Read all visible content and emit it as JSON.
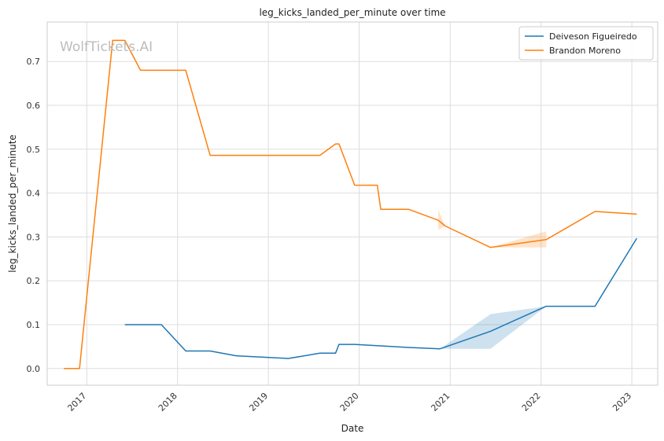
{
  "chart_data": {
    "type": "line",
    "title": "leg_kicks_landed_per_minute over time",
    "xlabel": "Date",
    "ylabel": "leg_kicks_landed_per_minute",
    "watermark": "WolfTickets.AI",
    "x_ticks": [
      "2017",
      "2018",
      "2019",
      "2020",
      "2021",
      "2022",
      "2023"
    ],
    "y_ticks": [
      "0.0",
      "0.1",
      "0.2",
      "0.3",
      "0.4",
      "0.5",
      "0.6",
      "0.7"
    ],
    "xlim": [
      "2016-07-26",
      "2023-04-15"
    ],
    "ylim": [
      -0.038,
      0.79
    ],
    "grid": true,
    "legend_position": "top-right",
    "series": [
      {
        "name": "Deiveson Figueiredo",
        "color": "#1f77b4",
        "points": [
          [
            "2017-06-03",
            0.1
          ],
          [
            "2017-10-28",
            0.1
          ],
          [
            "2018-02-03",
            0.04
          ],
          [
            "2018-05-12",
            0.04
          ],
          [
            "2018-08-25",
            0.029
          ],
          [
            "2019-03-23",
            0.023
          ],
          [
            "2019-07-27",
            0.035
          ],
          [
            "2019-09-28",
            0.035
          ],
          [
            "2019-10-12",
            0.055
          ],
          [
            "2019-12-14",
            0.055
          ],
          [
            "2020-03-14",
            0.052
          ],
          [
            "2020-07-18",
            0.048
          ],
          [
            "2020-11-21",
            0.045
          ],
          [
            "2021-06-12",
            0.085
          ],
          [
            "2022-01-22",
            0.142
          ],
          [
            "2022-08-06",
            0.142
          ],
          [
            "2023-01-21",
            0.297
          ]
        ],
        "band": [
          [
            "2020-11-21",
            0.045,
            0.045
          ],
          [
            "2021-06-12",
            0.045,
            0.124
          ],
          [
            "2022-01-22",
            0.142,
            0.142
          ]
        ]
      },
      {
        "name": "Brandon Moreno",
        "color": "#ff7f0e",
        "points": [
          [
            "2016-10-01",
            0.0
          ],
          [
            "2016-12-03",
            0.0
          ],
          [
            "2017-04-15",
            0.748
          ],
          [
            "2017-06-03",
            0.748
          ],
          [
            "2017-08-05",
            0.68
          ],
          [
            "2018-02-03",
            0.68
          ],
          [
            "2018-05-12",
            0.486
          ],
          [
            "2019-07-27",
            0.486
          ],
          [
            "2019-09-28",
            0.512
          ],
          [
            "2019-10-12",
            0.512
          ],
          [
            "2019-12-14",
            0.418
          ],
          [
            "2020-03-14",
            0.418
          ],
          [
            "2020-03-28",
            0.363
          ],
          [
            "2020-07-18",
            0.363
          ],
          [
            "2020-11-14",
            0.338
          ],
          [
            "2020-12-12",
            0.325
          ],
          [
            "2021-06-12",
            0.276
          ],
          [
            "2022-01-22",
            0.294
          ],
          [
            "2022-08-06",
            0.358
          ],
          [
            "2023-01-21",
            0.352
          ]
        ],
        "band": [
          [
            "2020-11-14",
            0.316,
            0.362
          ],
          [
            "2020-12-12",
            0.325,
            0.325
          ],
          [
            "2021-06-12",
            0.276,
            0.276
          ],
          [
            "2022-01-22",
            0.276,
            0.313
          ]
        ]
      }
    ]
  }
}
